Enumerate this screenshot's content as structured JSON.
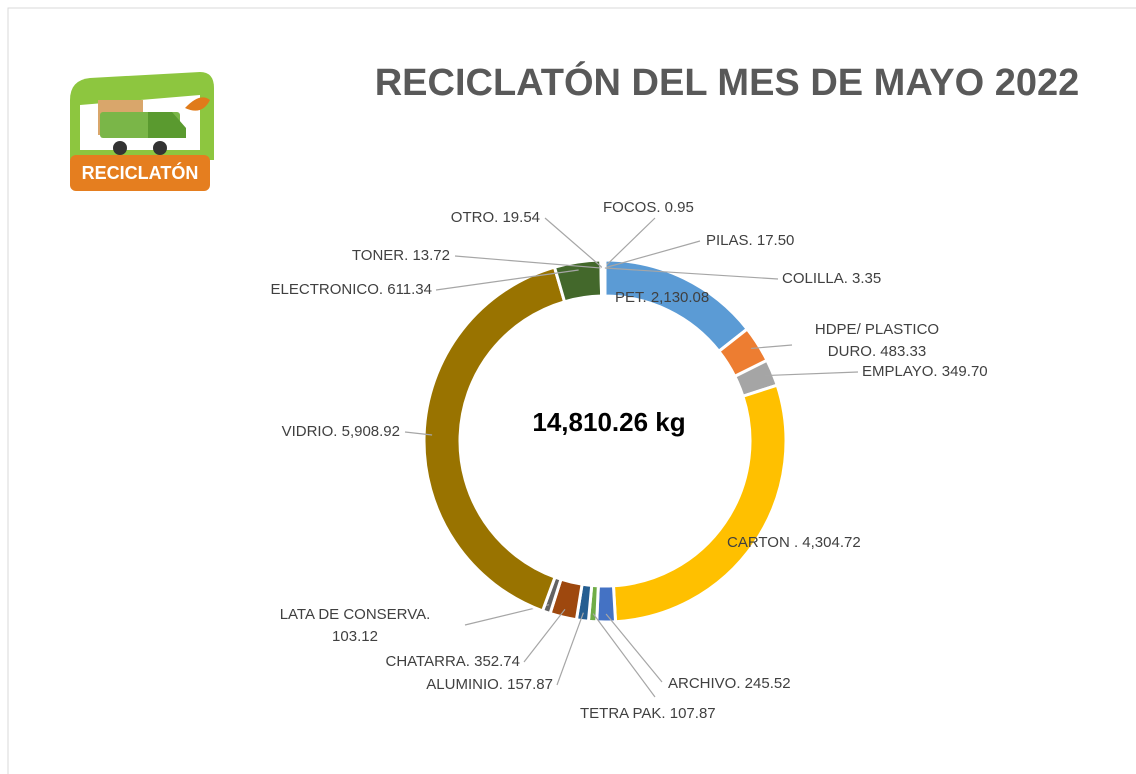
{
  "logo_text": "RECICLATÓN",
  "chart_data": {
    "type": "donut",
    "title": "RECICLATÓN DEL MES DE MAYO 2022",
    "total_label": "14,810.26 kg",
    "categories": [
      "PET",
      "HDPE/ PLASTICO DURO",
      "EMPLAYO",
      "CARTON",
      "ARCHIVO",
      "TETRA PAK",
      "ALUMINIO",
      "CHATARRA",
      "LATA DE CONSERVA",
      "VIDRIO",
      "ELECTRONICO",
      "TONER",
      "OTRO",
      "FOCOS",
      "PILAS",
      "COLILLA"
    ],
    "values": [
      2130.08,
      483.33,
      349.7,
      4304.72,
      245.52,
      107.87,
      157.87,
      352.74,
      103.12,
      5908.92,
      611.34,
      13.72,
      19.54,
      0.95,
      17.5,
      3.35
    ],
    "value_labels": [
      [
        "PET. 2,130.08"
      ],
      [
        "HDPE/ PLASTICO",
        "DURO. 483.33"
      ],
      [
        "EMPLAYO. 349.70"
      ],
      [
        "CARTON . 4,304.72"
      ],
      [
        "ARCHIVO. 245.52"
      ],
      [
        "TETRA PAK. 107.87"
      ],
      [
        "ALUMINIO. 157.87"
      ],
      [
        "CHATARRA. 352.74"
      ],
      [
        "LATA DE CONSERVA.",
        "103.12"
      ],
      [
        "VIDRIO. 5,908.92"
      ],
      [
        "ELECTRONICO. 611.34"
      ],
      [
        "TONER. 13.72"
      ],
      [
        "OTRO. 19.54"
      ],
      [
        "FOCOS. 0.95"
      ],
      [
        "PILAS. 17.50"
      ],
      [
        "COLILLA. 3.35"
      ]
    ],
    "colors": [
      "#5b9bd5",
      "#ed7d31",
      "#a5a5a5",
      "#ffc000",
      "#4472c4",
      "#70ad47",
      "#255e91",
      "#9e480e",
      "#636363",
      "#997300",
      "#43682b",
      "#698ed0",
      "#f1975a",
      "#b7b7b7",
      "#ffcd33",
      "#5a8fd0"
    ]
  }
}
